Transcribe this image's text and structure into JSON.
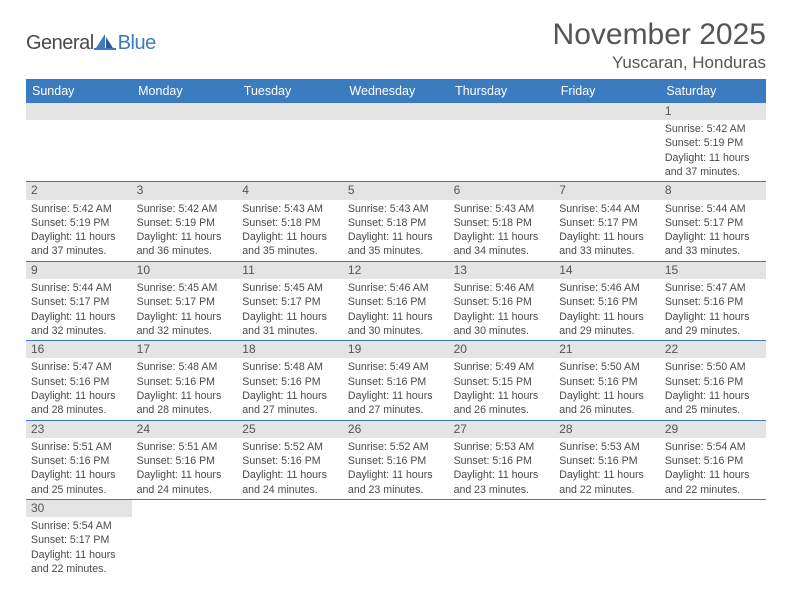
{
  "brand": {
    "general": "General",
    "blue": "Blue"
  },
  "title": "November 2025",
  "location": "Yuscaran, Honduras",
  "colors": {
    "header_bg": "#3b7bbf",
    "daynum_bg": "#e4e4e4",
    "text": "#4a4a4a",
    "title_text": "#555555"
  },
  "day_headers": [
    "Sunday",
    "Monday",
    "Tuesday",
    "Wednesday",
    "Thursday",
    "Friday",
    "Saturday"
  ],
  "weeks": [
    [
      null,
      null,
      null,
      null,
      null,
      null,
      {
        "n": "1",
        "sr": "5:42 AM",
        "ss": "5:19 PM",
        "dl": "11 hours and 37 minutes."
      }
    ],
    [
      {
        "n": "2",
        "sr": "5:42 AM",
        "ss": "5:19 PM",
        "dl": "11 hours and 37 minutes."
      },
      {
        "n": "3",
        "sr": "5:42 AM",
        "ss": "5:19 PM",
        "dl": "11 hours and 36 minutes."
      },
      {
        "n": "4",
        "sr": "5:43 AM",
        "ss": "5:18 PM",
        "dl": "11 hours and 35 minutes."
      },
      {
        "n": "5",
        "sr": "5:43 AM",
        "ss": "5:18 PM",
        "dl": "11 hours and 35 minutes."
      },
      {
        "n": "6",
        "sr": "5:43 AM",
        "ss": "5:18 PM",
        "dl": "11 hours and 34 minutes."
      },
      {
        "n": "7",
        "sr": "5:44 AM",
        "ss": "5:17 PM",
        "dl": "11 hours and 33 minutes."
      },
      {
        "n": "8",
        "sr": "5:44 AM",
        "ss": "5:17 PM",
        "dl": "11 hours and 33 minutes."
      }
    ],
    [
      {
        "n": "9",
        "sr": "5:44 AM",
        "ss": "5:17 PM",
        "dl": "11 hours and 32 minutes."
      },
      {
        "n": "10",
        "sr": "5:45 AM",
        "ss": "5:17 PM",
        "dl": "11 hours and 32 minutes."
      },
      {
        "n": "11",
        "sr": "5:45 AM",
        "ss": "5:17 PM",
        "dl": "11 hours and 31 minutes."
      },
      {
        "n": "12",
        "sr": "5:46 AM",
        "ss": "5:16 PM",
        "dl": "11 hours and 30 minutes."
      },
      {
        "n": "13",
        "sr": "5:46 AM",
        "ss": "5:16 PM",
        "dl": "11 hours and 30 minutes."
      },
      {
        "n": "14",
        "sr": "5:46 AM",
        "ss": "5:16 PM",
        "dl": "11 hours and 29 minutes."
      },
      {
        "n": "15",
        "sr": "5:47 AM",
        "ss": "5:16 PM",
        "dl": "11 hours and 29 minutes."
      }
    ],
    [
      {
        "n": "16",
        "sr": "5:47 AM",
        "ss": "5:16 PM",
        "dl": "11 hours and 28 minutes."
      },
      {
        "n": "17",
        "sr": "5:48 AM",
        "ss": "5:16 PM",
        "dl": "11 hours and 28 minutes."
      },
      {
        "n": "18",
        "sr": "5:48 AM",
        "ss": "5:16 PM",
        "dl": "11 hours and 27 minutes."
      },
      {
        "n": "19",
        "sr": "5:49 AM",
        "ss": "5:16 PM",
        "dl": "11 hours and 27 minutes."
      },
      {
        "n": "20",
        "sr": "5:49 AM",
        "ss": "5:15 PM",
        "dl": "11 hours and 26 minutes."
      },
      {
        "n": "21",
        "sr": "5:50 AM",
        "ss": "5:16 PM",
        "dl": "11 hours and 26 minutes."
      },
      {
        "n": "22",
        "sr": "5:50 AM",
        "ss": "5:16 PM",
        "dl": "11 hours and 25 minutes."
      }
    ],
    [
      {
        "n": "23",
        "sr": "5:51 AM",
        "ss": "5:16 PM",
        "dl": "11 hours and 25 minutes."
      },
      {
        "n": "24",
        "sr": "5:51 AM",
        "ss": "5:16 PM",
        "dl": "11 hours and 24 minutes."
      },
      {
        "n": "25",
        "sr": "5:52 AM",
        "ss": "5:16 PM",
        "dl": "11 hours and 24 minutes."
      },
      {
        "n": "26",
        "sr": "5:52 AM",
        "ss": "5:16 PM",
        "dl": "11 hours and 23 minutes."
      },
      {
        "n": "27",
        "sr": "5:53 AM",
        "ss": "5:16 PM",
        "dl": "11 hours and 23 minutes."
      },
      {
        "n": "28",
        "sr": "5:53 AM",
        "ss": "5:16 PM",
        "dl": "11 hours and 22 minutes."
      },
      {
        "n": "29",
        "sr": "5:54 AM",
        "ss": "5:16 PM",
        "dl": "11 hours and 22 minutes."
      }
    ],
    [
      {
        "n": "30",
        "sr": "5:54 AM",
        "ss": "5:17 PM",
        "dl": "11 hours and 22 minutes."
      },
      null,
      null,
      null,
      null,
      null,
      null
    ]
  ],
  "labels": {
    "sunrise_prefix": "Sunrise: ",
    "sunset_prefix": "Sunset: ",
    "daylight_prefix": "Daylight: "
  }
}
